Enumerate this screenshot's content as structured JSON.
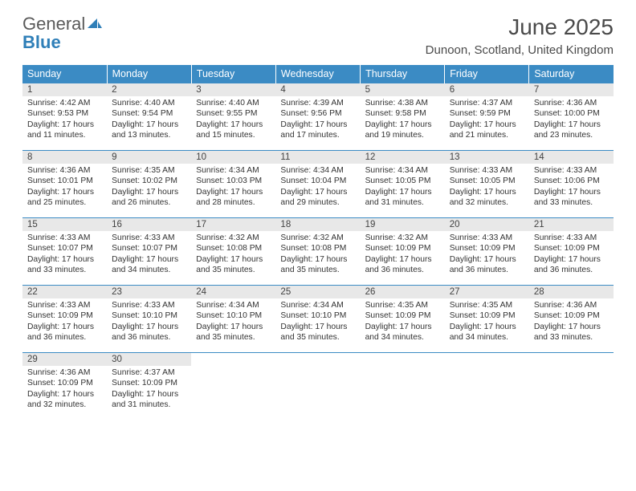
{
  "brand": {
    "word1": "General",
    "word2": "Blue"
  },
  "title": "June 2025",
  "location": "Dunoon, Scotland, United Kingdom",
  "colors": {
    "header_bg": "#3b8bc4",
    "header_text": "#ffffff",
    "daynum_bg": "#e8e8e8",
    "rule": "#3b8bc4",
    "logo_gray": "#5a5a5a",
    "logo_blue": "#2f7fb8"
  },
  "weekdays": [
    "Sunday",
    "Monday",
    "Tuesday",
    "Wednesday",
    "Thursday",
    "Friday",
    "Saturday"
  ],
  "days": [
    {
      "n": 1,
      "sunrise": "4:42 AM",
      "sunset": "9:53 PM",
      "daylight": "17 hours and 11 minutes."
    },
    {
      "n": 2,
      "sunrise": "4:40 AM",
      "sunset": "9:54 PM",
      "daylight": "17 hours and 13 minutes."
    },
    {
      "n": 3,
      "sunrise": "4:40 AM",
      "sunset": "9:55 PM",
      "daylight": "17 hours and 15 minutes."
    },
    {
      "n": 4,
      "sunrise": "4:39 AM",
      "sunset": "9:56 PM",
      "daylight": "17 hours and 17 minutes."
    },
    {
      "n": 5,
      "sunrise": "4:38 AM",
      "sunset": "9:58 PM",
      "daylight": "17 hours and 19 minutes."
    },
    {
      "n": 6,
      "sunrise": "4:37 AM",
      "sunset": "9:59 PM",
      "daylight": "17 hours and 21 minutes."
    },
    {
      "n": 7,
      "sunrise": "4:36 AM",
      "sunset": "10:00 PM",
      "daylight": "17 hours and 23 minutes."
    },
    {
      "n": 8,
      "sunrise": "4:36 AM",
      "sunset": "10:01 PM",
      "daylight": "17 hours and 25 minutes."
    },
    {
      "n": 9,
      "sunrise": "4:35 AM",
      "sunset": "10:02 PM",
      "daylight": "17 hours and 26 minutes."
    },
    {
      "n": 10,
      "sunrise": "4:34 AM",
      "sunset": "10:03 PM",
      "daylight": "17 hours and 28 minutes."
    },
    {
      "n": 11,
      "sunrise": "4:34 AM",
      "sunset": "10:04 PM",
      "daylight": "17 hours and 29 minutes."
    },
    {
      "n": 12,
      "sunrise": "4:34 AM",
      "sunset": "10:05 PM",
      "daylight": "17 hours and 31 minutes."
    },
    {
      "n": 13,
      "sunrise": "4:33 AM",
      "sunset": "10:05 PM",
      "daylight": "17 hours and 32 minutes."
    },
    {
      "n": 14,
      "sunrise": "4:33 AM",
      "sunset": "10:06 PM",
      "daylight": "17 hours and 33 minutes."
    },
    {
      "n": 15,
      "sunrise": "4:33 AM",
      "sunset": "10:07 PM",
      "daylight": "17 hours and 33 minutes."
    },
    {
      "n": 16,
      "sunrise": "4:33 AM",
      "sunset": "10:07 PM",
      "daylight": "17 hours and 34 minutes."
    },
    {
      "n": 17,
      "sunrise": "4:32 AM",
      "sunset": "10:08 PM",
      "daylight": "17 hours and 35 minutes."
    },
    {
      "n": 18,
      "sunrise": "4:32 AM",
      "sunset": "10:08 PM",
      "daylight": "17 hours and 35 minutes."
    },
    {
      "n": 19,
      "sunrise": "4:32 AM",
      "sunset": "10:09 PM",
      "daylight": "17 hours and 36 minutes."
    },
    {
      "n": 20,
      "sunrise": "4:33 AM",
      "sunset": "10:09 PM",
      "daylight": "17 hours and 36 minutes."
    },
    {
      "n": 21,
      "sunrise": "4:33 AM",
      "sunset": "10:09 PM",
      "daylight": "17 hours and 36 minutes."
    },
    {
      "n": 22,
      "sunrise": "4:33 AM",
      "sunset": "10:09 PM",
      "daylight": "17 hours and 36 minutes."
    },
    {
      "n": 23,
      "sunrise": "4:33 AM",
      "sunset": "10:10 PM",
      "daylight": "17 hours and 36 minutes."
    },
    {
      "n": 24,
      "sunrise": "4:34 AM",
      "sunset": "10:10 PM",
      "daylight": "17 hours and 35 minutes."
    },
    {
      "n": 25,
      "sunrise": "4:34 AM",
      "sunset": "10:10 PM",
      "daylight": "17 hours and 35 minutes."
    },
    {
      "n": 26,
      "sunrise": "4:35 AM",
      "sunset": "10:09 PM",
      "daylight": "17 hours and 34 minutes."
    },
    {
      "n": 27,
      "sunrise": "4:35 AM",
      "sunset": "10:09 PM",
      "daylight": "17 hours and 34 minutes."
    },
    {
      "n": 28,
      "sunrise": "4:36 AM",
      "sunset": "10:09 PM",
      "daylight": "17 hours and 33 minutes."
    },
    {
      "n": 29,
      "sunrise": "4:36 AM",
      "sunset": "10:09 PM",
      "daylight": "17 hours and 32 minutes."
    },
    {
      "n": 30,
      "sunrise": "4:37 AM",
      "sunset": "10:09 PM",
      "daylight": "17 hours and 31 minutes."
    }
  ],
  "labels": {
    "sunrise": "Sunrise:",
    "sunset": "Sunset:",
    "daylight": "Daylight:"
  },
  "layout": {
    "start_weekday": 0,
    "total_days": 30,
    "cols": 7
  }
}
